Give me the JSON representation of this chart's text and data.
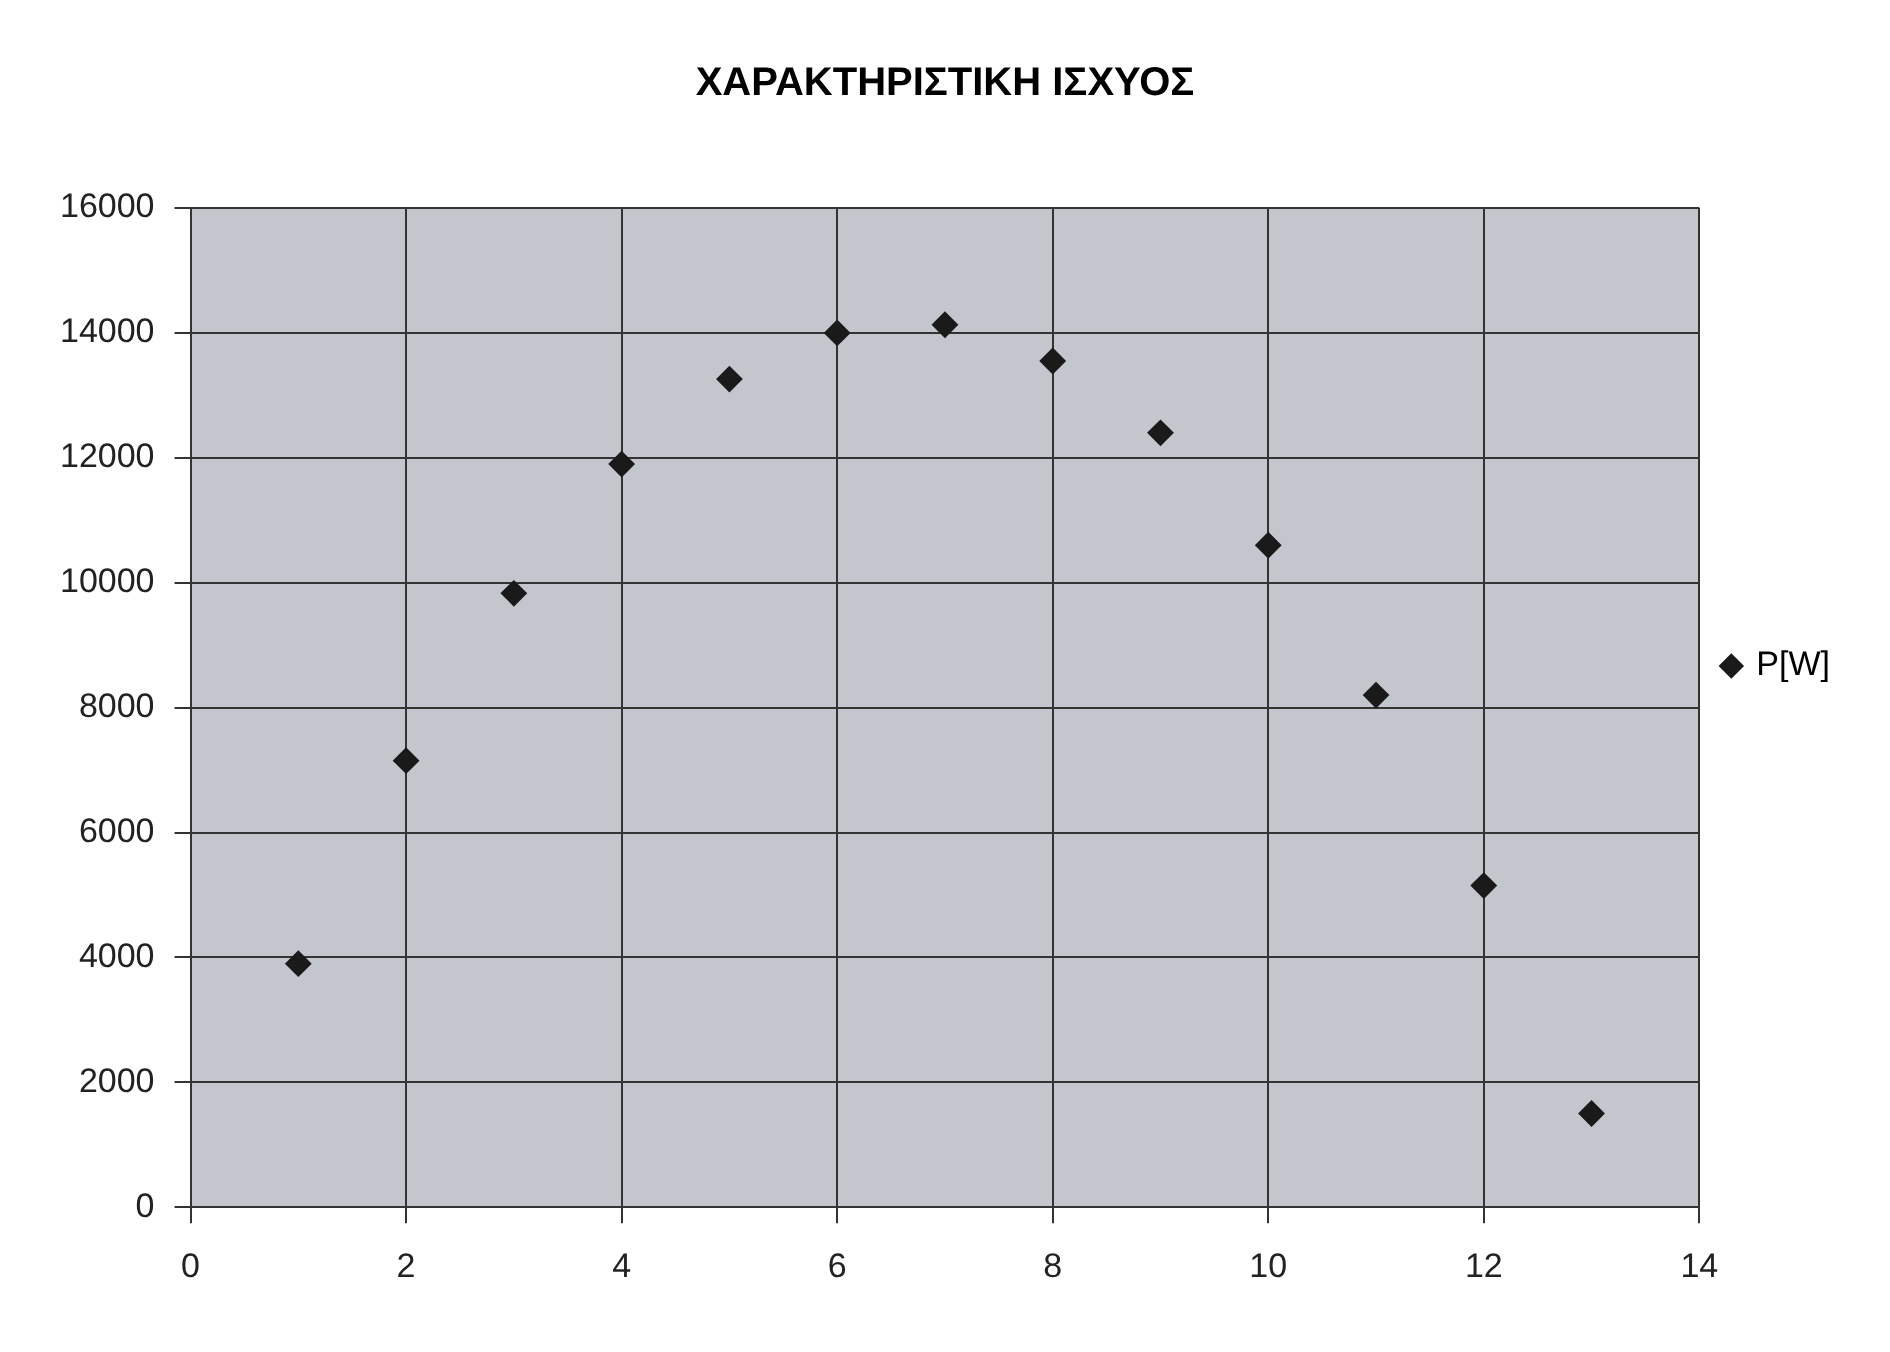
{
  "chart_data": {
    "type": "scatter",
    "title": "ΧΑΡΑΚΤΗΡΙΣΤΙΚΗ ΙΣΧΥΟΣ",
    "x": [
      1,
      2,
      3,
      4,
      5,
      6,
      7,
      8,
      9,
      10,
      11,
      12,
      13
    ],
    "series": [
      {
        "name": "P[W]",
        "color": "#1a1a1a",
        "values": [
          3900,
          7150,
          9830,
          11900,
          13260,
          14000,
          14130,
          13550,
          12400,
          10600,
          8200,
          5150,
          1500
        ]
      }
    ],
    "xlim": [
      0,
      14
    ],
    "xticks": [
      0,
      2,
      4,
      6,
      8,
      10,
      12,
      14
    ],
    "ylim": [
      0,
      16000
    ],
    "yticks": [
      0,
      2000,
      4000,
      6000,
      8000,
      10000,
      12000,
      14000,
      16000
    ],
    "grid": true,
    "legend": "right",
    "marker": "diamond"
  }
}
